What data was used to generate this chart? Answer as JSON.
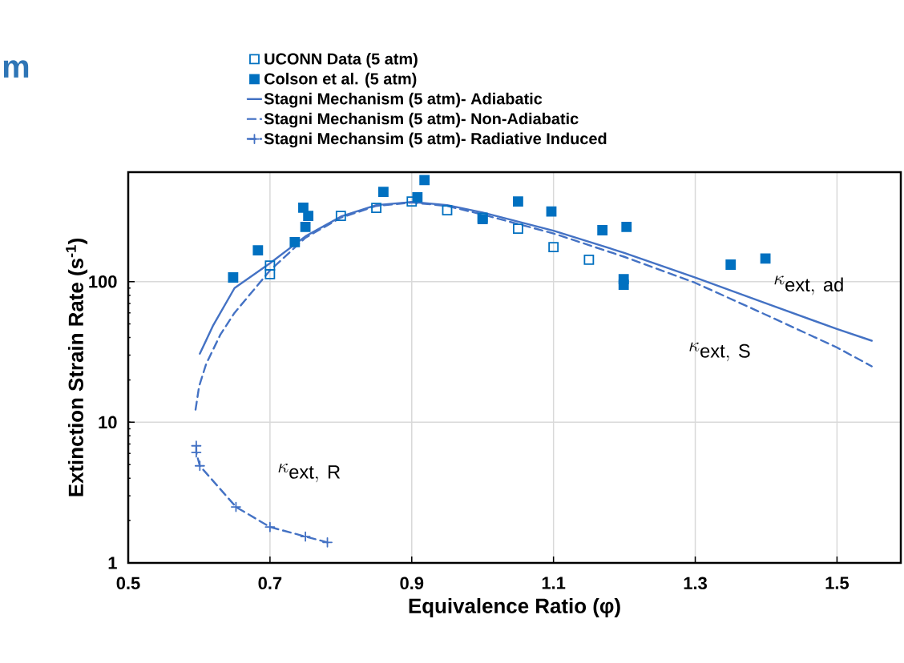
{
  "chart_data": {
    "type": "scatter",
    "title": "m",
    "xlabel": "Equivalence Ratio (φ)",
    "ylabel": "Extinction Strain Rate (s$^{-1}$)",
    "xlim": [
      0.5,
      1.59
    ],
    "ylim": [
      1,
      600
    ],
    "xticks": [
      0.5,
      0.7,
      0.9,
      1.1,
      1.3,
      1.5
    ],
    "yticks": [
      1,
      10,
      100
    ],
    "log": "y",
    "grid": true,
    "legend": "top",
    "series": [
      {
        "name": "UCONN Data (5 atm)",
        "marker": "square open",
        "color": "#0070c0",
        "x": [
          0.7,
          0.7,
          0.8,
          0.85,
          0.9,
          0.95,
          1.0,
          1.05,
          1.1,
          1.15
        ],
        "values": [
          130,
          113,
          293,
          334,
          371,
          321,
          285,
          238,
          176,
          143
        ]
      },
      {
        "name": "Colson et al. (5 atm)",
        "marker": "square",
        "color": "#0070c0",
        "x": [
          0.648,
          0.683,
          0.735,
          0.747,
          0.754,
          0.75,
          0.86,
          0.908,
          0.918,
          1.0,
          1.05,
          1.097,
          1.169,
          1.203,
          1.199,
          1.199,
          1.35,
          1.399
        ],
        "values": [
          107,
          167,
          191,
          335,
          293,
          245,
          435,
          398,
          527,
          278,
          371,
          315,
          232,
          245,
          104,
          95,
          132,
          146
        ]
      },
      {
        "name": "Stagni Mechanism (5 atm)- Adiabatic",
        "type": "line",
        "marker": "none",
        "line_style": "solid",
        "color": "#4472c4",
        "x": [
          0.601,
          0.62,
          0.65,
          0.7,
          0.75,
          0.8,
          0.85,
          0.9,
          0.95,
          1.0,
          1.1,
          1.2,
          1.3,
          1.4,
          1.5,
          1.549
        ],
        "values": [
          30.7,
          49,
          90,
          135,
          210,
          290,
          350,
          368,
          350,
          310,
          230,
          160,
          107,
          70,
          46,
          38
        ]
      },
      {
        "name": "Stagni Mechanism (5 atm)- Non-Adiabatic",
        "type": "line",
        "marker": "none",
        "line_style": "dashed",
        "color": "#4472c4",
        "x": [
          0.595,
          0.6,
          0.61,
          0.63,
          0.65,
          0.7,
          0.75,
          0.8,
          0.85,
          0.9,
          0.95,
          1.0,
          1.1,
          1.2,
          1.3,
          1.4,
          1.5,
          1.549
        ],
        "values": [
          12.3,
          18,
          26,
          42,
          60,
          120,
          205,
          285,
          345,
          365,
          345,
          300,
          220,
          150,
          98,
          58,
          34,
          25
        ]
      },
      {
        "name": "Stagni Mechansim (5 atm)- Radiative Induced",
        "type": "line",
        "marker": "cross",
        "line_style": "dashed",
        "color": "#4472c4",
        "x": [
          0.596,
          0.596,
          0.601,
          0.652,
          0.7,
          0.75,
          0.781
        ],
        "values": [
          6.8,
          6.1,
          4.9,
          2.5,
          1.8,
          1.54,
          1.4
        ]
      }
    ],
    "annotations": [
      "\\kappa_{\\mathrm{ext,\\ ad}}",
      "\\kappa_{\\mathrm{ext,\\ S}}",
      "\\kappa_{\\mathrm{ext,\\ R}}"
    ]
  }
}
